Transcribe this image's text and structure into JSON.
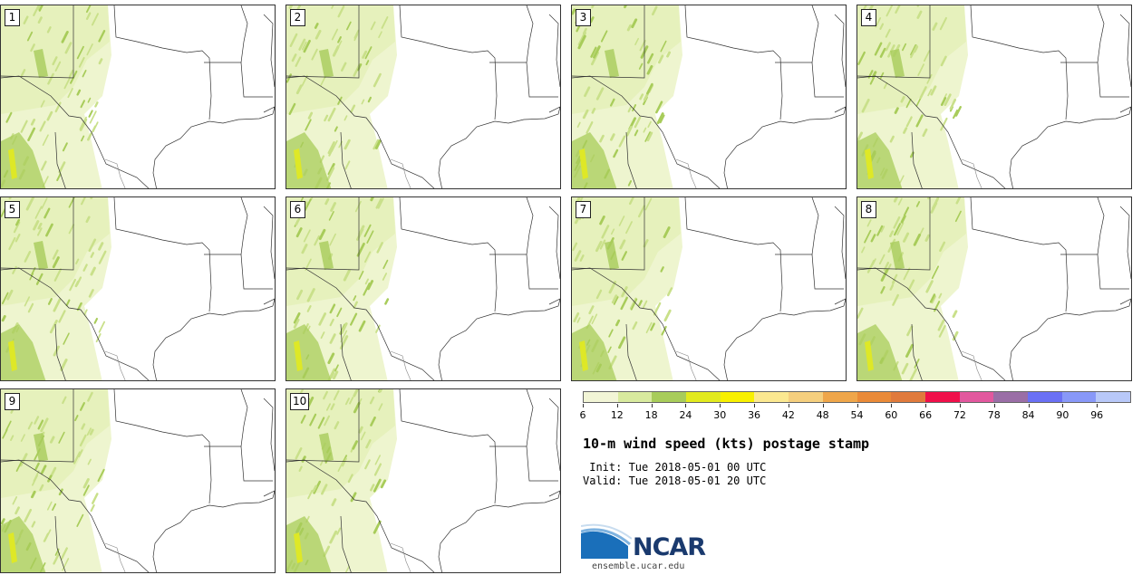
{
  "panels": [
    {
      "label": "1"
    },
    {
      "label": "2"
    },
    {
      "label": "3"
    },
    {
      "label": "4"
    },
    {
      "label": "5"
    },
    {
      "label": "6"
    },
    {
      "label": "7"
    },
    {
      "label": "8"
    },
    {
      "label": "9"
    },
    {
      "label": "10"
    }
  ],
  "colorbar": {
    "ticks": [
      "6",
      "12",
      "18",
      "24",
      "30",
      "36",
      "42",
      "48",
      "54",
      "60",
      "66",
      "72",
      "78",
      "84",
      "90",
      "96"
    ],
    "colors": [
      "#f2f5d6",
      "#d8ea9e",
      "#a8cc5a",
      "#e2ea1e",
      "#f8f000",
      "#fbe890",
      "#f5cf7e",
      "#efa64a",
      "#ea8a38",
      "#e07a3c",
      "#f0104a",
      "#e2589e",
      "#9a6ea6",
      "#6a70f4",
      "#8898f8",
      "#b8c8f8"
    ]
  },
  "title": "10-m wind speed (kts) postage stamp",
  "init": " Init: Tue 2018-05-01 00 UTC",
  "valid": "Valid: Tue 2018-05-01 20 UTC",
  "logo_text": "NCAR",
  "url": "ensemble.ucar.edu"
}
